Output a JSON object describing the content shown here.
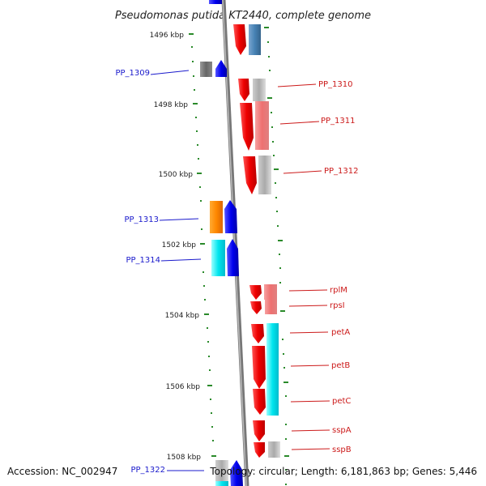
{
  "title": "Pseudomonas putida KT2440, complete genome",
  "footer": {
    "accession": "Accession: NC_002947",
    "topology": "Topology: circular; Length: 6,181,863 bp; Genes: 5,446"
  },
  "kbp_labels": [
    "1496 kbp",
    "1498 kbp",
    "1500 kbp",
    "1502 kbp",
    "1504 kbp",
    "1506 kbp",
    "1508 kbp"
  ],
  "genes_left": [
    "PP_1309",
    "PP_1313",
    "PP_1314",
    "PP_1322"
  ],
  "genes_right": [
    "PP_1310",
    "PP_1311",
    "PP_1312",
    "rplM",
    "rpsI",
    "petA",
    "petB",
    "petC",
    "sspA",
    "sspB"
  ],
  "colors": {
    "red": "#ee1111",
    "blue": "#1111ee",
    "cyan": "#11eeee",
    "orange": "#ff8800",
    "gray": "#777777",
    "steelblue": "#4682b4",
    "backbone": "#888888",
    "tick": "#2a8a2a"
  }
}
